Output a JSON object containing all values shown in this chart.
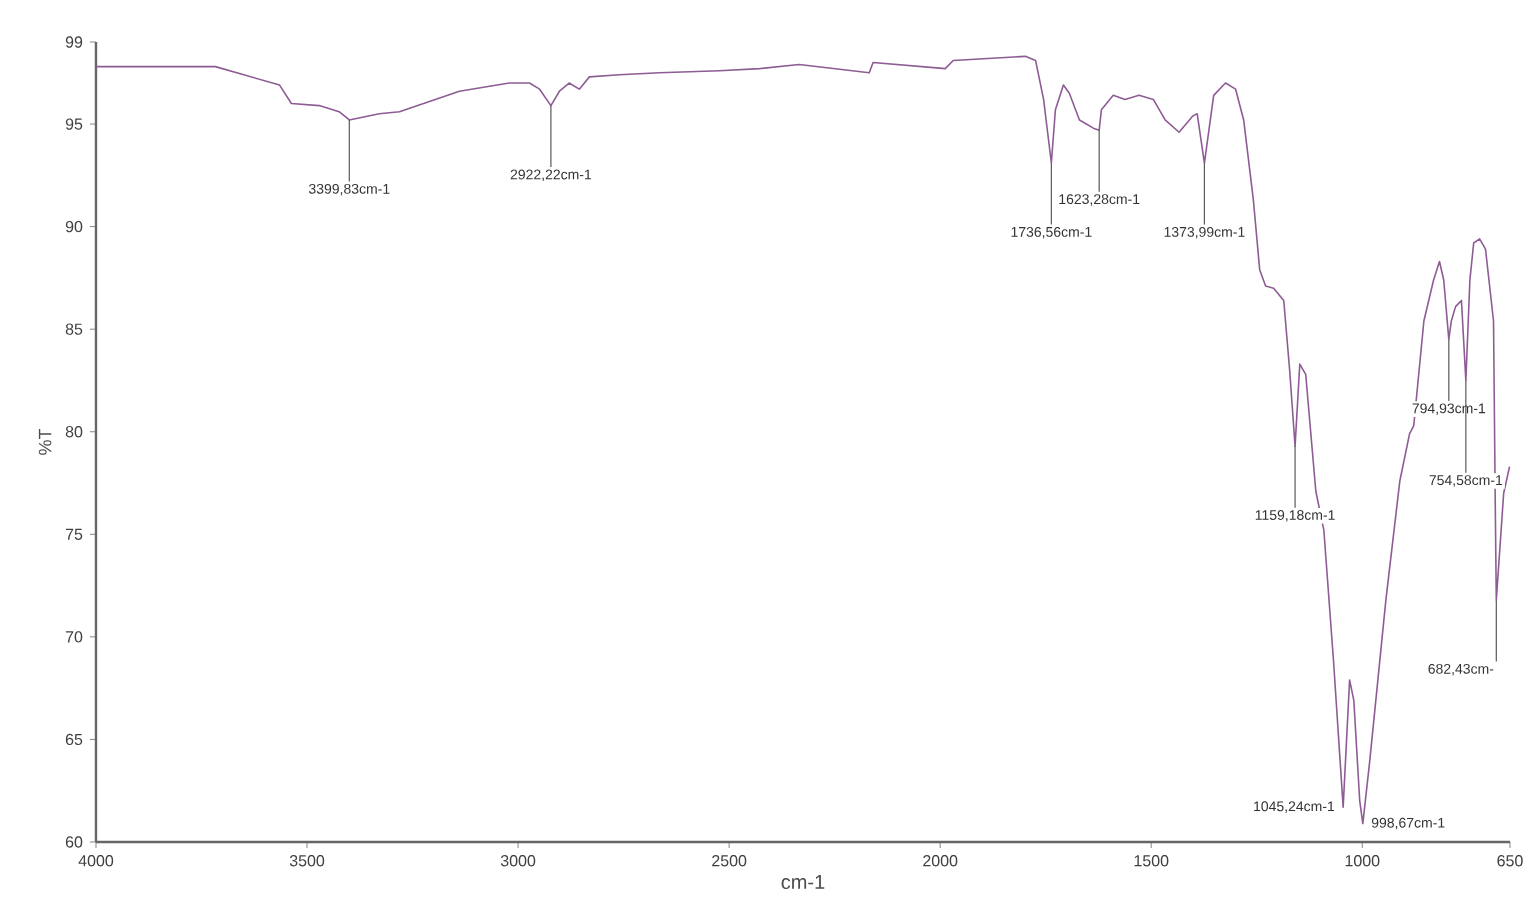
{
  "chart_data": {
    "type": "line",
    "xlabel": "cm-1",
    "ylabel": "%T",
    "xlim": [
      4000,
      650
    ],
    "ylim": [
      60,
      99
    ],
    "xticks": [
      4000,
      3500,
      3000,
      2500,
      2000,
      1500,
      1000,
      650
    ],
    "yticks": [
      60,
      65,
      70,
      75,
      80,
      85,
      90,
      95,
      99
    ],
    "x": [
      4000,
      3717,
      3565,
      3537,
      3471,
      3424,
      3399.83,
      3329,
      3281,
      3210,
      3139,
      3021,
      2973,
      2949,
      2922.22,
      2902,
      2879,
      2855,
      2831,
      2760,
      2665,
      2523,
      2428,
      2334,
      2168,
      2159,
      1988,
      1969,
      1798,
      1774,
      1755,
      1736.56,
      1727,
      1708,
      1694,
      1670,
      1637,
      1623.28,
      1618,
      1590,
      1562,
      1529,
      1495,
      1467,
      1434,
      1401,
      1391,
      1373.99,
      1352,
      1324,
      1300,
      1281,
      1258,
      1243,
      1229,
      1210,
      1186,
      1172,
      1159.18,
      1148,
      1134,
      1110,
      1091,
      1068,
      1045.24,
      1030,
      1020,
      1006,
      998.67,
      982,
      944,
      911,
      888,
      878,
      854,
      831,
      817,
      807,
      794.93,
      789,
      779,
      765,
      754.58,
      745,
      736,
      722,
      708,
      689,
      685,
      682.43,
      665,
      651
    ],
    "series": [
      {
        "color": "#8e5c94",
        "values": [
          97.8,
          97.8,
          96.9,
          96.0,
          95.9,
          95.6,
          95.2,
          95.5,
          95.6,
          96.1,
          96.6,
          97.0,
          97.0,
          96.7,
          95.9,
          96.6,
          97.0,
          96.7,
          97.3,
          97.4,
          97.5,
          97.6,
          97.7,
          97.9,
          97.5,
          98.0,
          97.7,
          98.1,
          98.3,
          98.1,
          96.2,
          93.1,
          95.7,
          96.9,
          96.5,
          95.2,
          94.8,
          94.7,
          95.7,
          96.4,
          96.2,
          96.4,
          96.2,
          95.2,
          94.6,
          95.4,
          95.5,
          93.1,
          96.4,
          97.0,
          96.7,
          95.2,
          91.3,
          87.9,
          87.1,
          87.0,
          86.4,
          83.0,
          79.3,
          83.3,
          82.8,
          77.1,
          75.2,
          68.8,
          61.7,
          67.9,
          66.9,
          62.0,
          60.9,
          64.0,
          71.8,
          77.6,
          79.9,
          80.3,
          85.4,
          87.4,
          88.3,
          87.4,
          84.5,
          85.4,
          86.1,
          86.4,
          82.5,
          87.4,
          89.2,
          89.4,
          88.9,
          85.4,
          76.7,
          71.8,
          77.0,
          78.3
        ]
      }
    ],
    "annotations": [
      {
        "text": "3399,83cm-1",
        "x": 3399.83,
        "y": 95.2
      },
      {
        "text": "2922,22cm-1",
        "x": 2922.22,
        "y": 95.9
      },
      {
        "text": "1736,56cm-1",
        "x": 1736.56,
        "y": 93.1
      },
      {
        "text": "1623,28cm-1",
        "x": 1623.28,
        "y": 94.7
      },
      {
        "text": "1373,99cm-1",
        "x": 1373.99,
        "y": 93.1
      },
      {
        "text": "1159,18cm-1",
        "x": 1159.18,
        "y": 79.3
      },
      {
        "text": "1045,24cm-1",
        "x": 1045.24,
        "y": 61.7
      },
      {
        "text": "998,67cm-1",
        "x": 998.67,
        "y": 60.9
      },
      {
        "text": "794,93cm-1",
        "x": 794.93,
        "y": 84.5
      },
      {
        "text": "754,58cm-1",
        "x": 754.58,
        "y": 82.5
      },
      {
        "text": "682,43cm-",
        "x": 682.43,
        "y": 71.8
      }
    ]
  }
}
